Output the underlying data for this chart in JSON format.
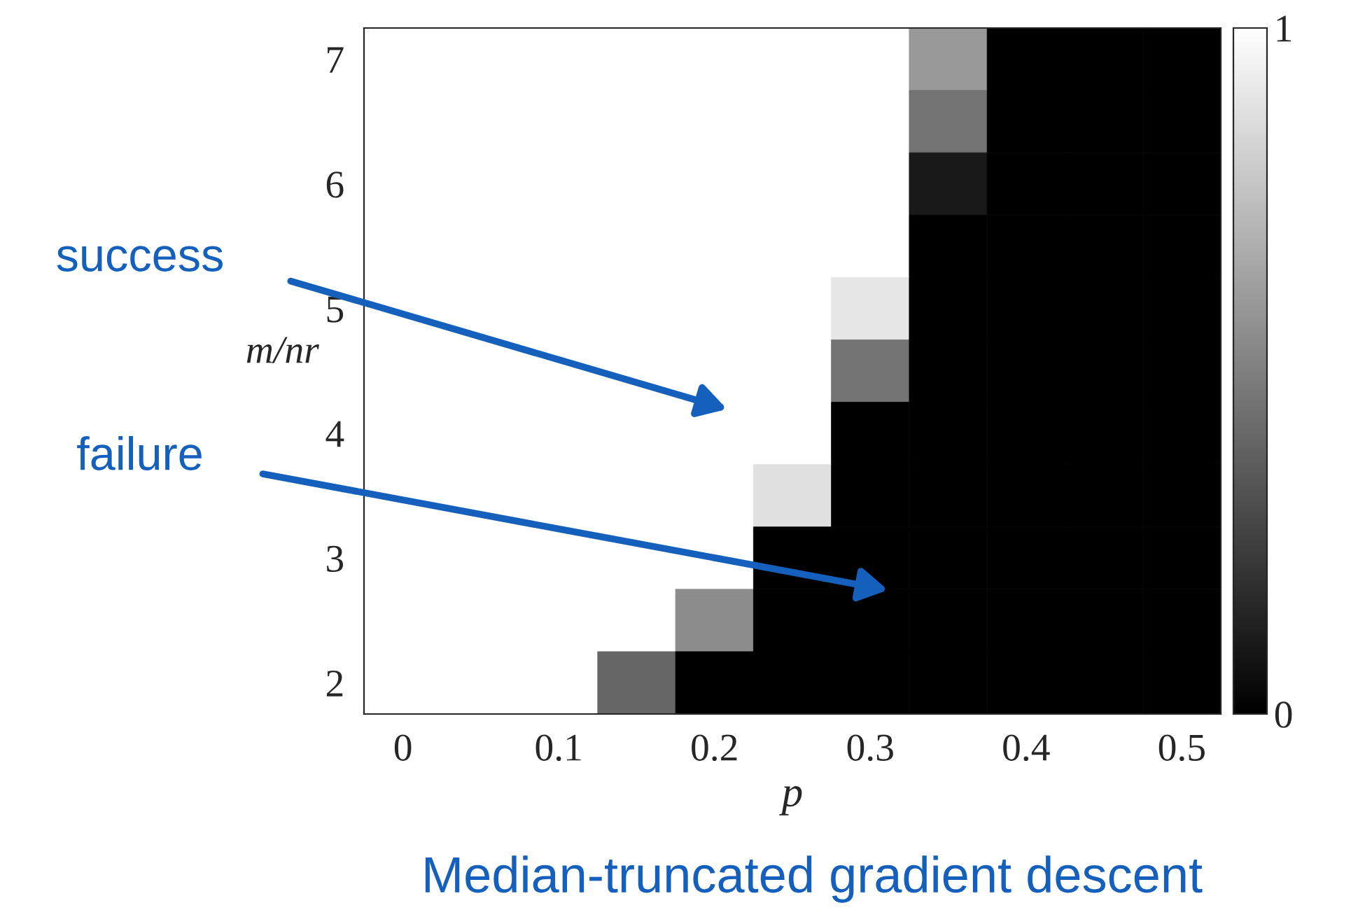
{
  "chart_data": {
    "type": "heatmap",
    "title": "Median-truncated gradient descent",
    "xlabel": "p",
    "ylabel": "m/nr",
    "x": [
      0,
      0.05,
      0.1,
      0.15,
      0.2,
      0.25,
      0.3,
      0.35,
      0.4,
      0.45,
      0.5
    ],
    "y": [
      7,
      6.5,
      6,
      5.5,
      5,
      4.5,
      4,
      3.5,
      3,
      2.5,
      2
    ],
    "cells": [
      [
        1,
        1,
        1,
        1,
        1,
        1,
        1,
        0.6,
        0,
        0,
        0
      ],
      [
        1,
        1,
        1,
        1,
        1,
        1,
        1,
        0.45,
        0,
        0,
        0
      ],
      [
        1,
        1,
        1,
        1,
        1,
        1,
        1,
        0.1,
        0,
        0,
        0
      ],
      [
        1,
        1,
        1,
        1,
        1,
        1,
        1,
        0,
        0,
        0,
        0
      ],
      [
        1,
        1,
        1,
        1,
        1,
        1,
        0.9,
        0,
        0,
        0,
        0
      ],
      [
        1,
        1,
        1,
        1,
        1,
        1,
        0.45,
        0,
        0,
        0,
        0
      ],
      [
        1,
        1,
        1,
        1,
        1,
        1,
        0,
        0,
        0,
        0,
        0
      ],
      [
        1,
        1,
        1,
        1,
        1,
        0.88,
        0,
        0,
        0,
        0,
        0
      ],
      [
        1,
        1,
        1,
        1,
        1,
        0,
        0,
        0,
        0,
        0,
        0
      ],
      [
        1,
        1,
        1,
        1,
        0.55,
        0,
        0,
        0,
        0,
        0,
        0
      ],
      [
        1,
        1,
        1,
        0.4,
        0,
        0,
        0,
        0,
        0,
        0,
        0
      ]
    ],
    "xlim": [
      -0.025,
      0.525
    ],
    "ylim": [
      1.75,
      7.25
    ],
    "xticks": [
      0,
      0.1,
      0.2,
      0.3,
      0.4,
      0.5
    ],
    "yticks": [
      2,
      3,
      4,
      5,
      6,
      7
    ],
    "clim": [
      0,
      1
    ],
    "cticks": [
      0,
      1
    ],
    "annotations": [
      "success",
      "failure"
    ]
  }
}
